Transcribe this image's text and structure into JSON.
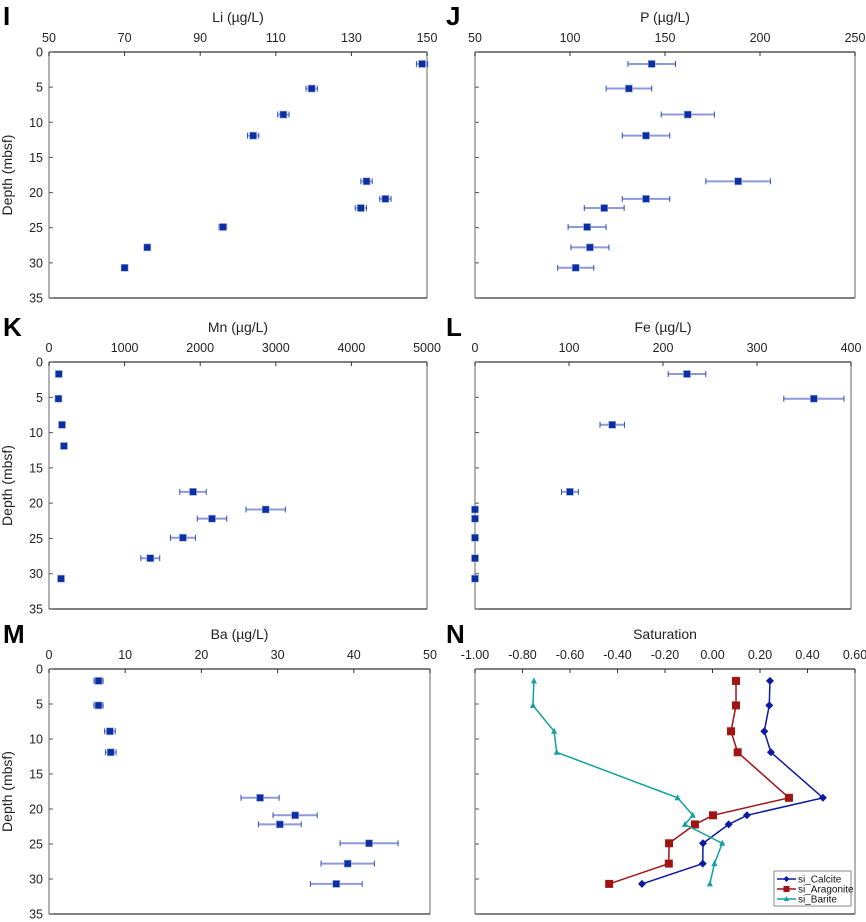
{
  "chart_data": [
    {
      "panel": "I",
      "type": "scatter",
      "title": "Li (µg/L)",
      "xlabel": "Li (µg/L)",
      "ylabel": "Depth (mbsf)",
      "xlim": [
        50,
        150
      ],
      "ylim": [
        0,
        35
      ],
      "y_inverted": true,
      "xticks": [
        50,
        70,
        90,
        110,
        130,
        150
      ],
      "yticks": [
        0,
        5,
        10,
        15,
        20,
        25,
        30,
        35
      ],
      "show_ytick_labels": true,
      "points": [
        {
          "depth": 1.7,
          "value": 148.7,
          "err": 1.5
        },
        {
          "depth": 5.2,
          "value": 119.5,
          "err": 1.5
        },
        {
          "depth": 8.9,
          "value": 112.0,
          "err": 1.5
        },
        {
          "depth": 11.9,
          "value": 104.0,
          "err": 1.5
        },
        {
          "depth": 18.4,
          "value": 134.0,
          "err": 1.5
        },
        {
          "depth": 20.9,
          "value": 139.0,
          "err": 1.5
        },
        {
          "depth": 22.2,
          "value": 132.5,
          "err": 1.5
        },
        {
          "depth": 24.9,
          "value": 96.0,
          "err": 1.0
        },
        {
          "depth": 27.8,
          "value": 76.0,
          "err": 0.7
        },
        {
          "depth": 30.7,
          "value": 70.0,
          "err": 0.6
        }
      ]
    },
    {
      "panel": "J",
      "type": "scatter",
      "title": "P (µg/L)",
      "xlabel": "P (µg/L)",
      "ylabel": "",
      "xlim": [
        50,
        250
      ],
      "ylim": [
        0,
        35
      ],
      "y_inverted": true,
      "xticks": [
        50,
        100,
        150,
        200,
        250
      ],
      "yticks": [
        0,
        5,
        10,
        15,
        20,
        25,
        30,
        35
      ],
      "show_ytick_labels": false,
      "points": [
        {
          "depth": 1.7,
          "value": 143,
          "err": 12.5
        },
        {
          "depth": 5.2,
          "value": 131,
          "err": 12
        },
        {
          "depth": 8.9,
          "value": 162,
          "err": 14
        },
        {
          "depth": 11.9,
          "value": 140,
          "err": 12.5
        },
        {
          "depth": 18.4,
          "value": 188.5,
          "err": 17
        },
        {
          "depth": 20.9,
          "value": 140,
          "err": 12.5
        },
        {
          "depth": 22.2,
          "value": 118,
          "err": 10.5
        },
        {
          "depth": 24.9,
          "value": 109,
          "err": 10
        },
        {
          "depth": 27.8,
          "value": 110.5,
          "err": 10
        },
        {
          "depth": 30.7,
          "value": 103,
          "err": 9.5
        }
      ]
    },
    {
      "panel": "K",
      "type": "scatter",
      "title": "Mn (µg/L)",
      "xlabel": "Mn (µg/L)",
      "ylabel": "Depth (mbsf)",
      "xlim": [
        0,
        5000
      ],
      "ylim": [
        0,
        35
      ],
      "y_inverted": true,
      "xticks": [
        0,
        1000,
        2000,
        3000,
        4000,
        5000
      ],
      "yticks": [
        0,
        5,
        10,
        15,
        20,
        25,
        30,
        35
      ],
      "show_ytick_labels": true,
      "points": [
        {
          "depth": 1.7,
          "value": 130,
          "err": 0
        },
        {
          "depth": 5.2,
          "value": 125,
          "err": 0
        },
        {
          "depth": 8.9,
          "value": 172,
          "err": 0
        },
        {
          "depth": 11.9,
          "value": 198,
          "err": 0
        },
        {
          "depth": 18.4,
          "value": 1905,
          "err": 175
        },
        {
          "depth": 20.9,
          "value": 2866,
          "err": 260
        },
        {
          "depth": 22.2,
          "value": 2156,
          "err": 195
        },
        {
          "depth": 24.9,
          "value": 1772,
          "err": 165
        },
        {
          "depth": 27.8,
          "value": 1340,
          "err": 125
        },
        {
          "depth": 30.7,
          "value": 159,
          "err": 0
        }
      ]
    },
    {
      "panel": "L",
      "type": "scatter",
      "title": "Fe (µg/L)",
      "xlabel": "Fe (µg/L)",
      "ylabel": "",
      "xlim": [
        0,
        400
      ],
      "ylim": [
        0,
        35
      ],
      "y_inverted": true,
      "xticks": [
        0,
        100,
        200,
        300,
        400
      ],
      "yticks": [
        0,
        5,
        10,
        15,
        20,
        25,
        30,
        35
      ],
      "show_ytick_labels": false,
      "points": [
        {
          "depth": 1.7,
          "value": 225.5,
          "err": 20
        },
        {
          "depth": 5.2,
          "value": 360.5,
          "err": 32
        },
        {
          "depth": 8.9,
          "value": 146,
          "err": 13
        },
        {
          "depth": 18.4,
          "value": 101,
          "err": 9
        },
        {
          "depth": 20.9,
          "value": 0,
          "err": 0
        },
        {
          "depth": 22.2,
          "value": 0,
          "err": 0
        },
        {
          "depth": 24.9,
          "value": 0,
          "err": 0
        },
        {
          "depth": 27.8,
          "value": 0,
          "err": 0
        },
        {
          "depth": 30.7,
          "value": 0,
          "err": 0
        }
      ]
    },
    {
      "panel": "M",
      "type": "scatter",
      "title": "Ba (µg/L)",
      "xlabel": "Ba (µg/L)",
      "ylabel": "Depth (mbsf)",
      "xlim": [
        0,
        50
      ],
      "ylim": [
        0,
        35
      ],
      "y_inverted": true,
      "xticks": [
        0,
        10,
        20,
        30,
        40,
        50
      ],
      "yticks": [
        0,
        5,
        10,
        15,
        20,
        25,
        30,
        35
      ],
      "show_ytick_labels": true,
      "points": [
        {
          "depth": 1.7,
          "value": 6.5,
          "err": 0.6
        },
        {
          "depth": 5.2,
          "value": 6.5,
          "err": 0.6
        },
        {
          "depth": 8.9,
          "value": 8.0,
          "err": 0.7
        },
        {
          "depth": 11.9,
          "value": 8.1,
          "err": 0.7
        },
        {
          "depth": 18.4,
          "value": 27.7,
          "err": 2.5
        },
        {
          "depth": 20.9,
          "value": 32.3,
          "err": 2.9
        },
        {
          "depth": 22.2,
          "value": 30.3,
          "err": 2.8
        },
        {
          "depth": 24.9,
          "value": 42.0,
          "err": 3.8
        },
        {
          "depth": 27.8,
          "value": 39.2,
          "err": 3.5
        },
        {
          "depth": 30.7,
          "value": 37.7,
          "err": 3.4
        }
      ]
    },
    {
      "panel": "N",
      "type": "line",
      "title": "Saturation",
      "xlabel": "Saturation",
      "ylabel": "",
      "xlim": [
        -1.0,
        0.6
      ],
      "ylim": [
        0,
        35
      ],
      "y_inverted": true,
      "xticks": [
        -1.0,
        -0.8,
        -0.6,
        -0.4,
        -0.2,
        0.0,
        0.2,
        0.4,
        0.6
      ],
      "xtick_labels": [
        "-1.00",
        "-0.80",
        "-0.60",
        "-0.40",
        "-0.20",
        "0.00",
        "0.20",
        "0.40",
        "0.60"
      ],
      "yticks": [
        0,
        5,
        10,
        15,
        20,
        25,
        30,
        35
      ],
      "show_ytick_labels": false,
      "legend": "bottom-right",
      "depths": [
        1.7,
        5.2,
        8.9,
        11.9,
        18.4,
        20.9,
        22.2,
        24.9,
        27.8,
        30.7
      ],
      "series": [
        {
          "name": "si_Calcite",
          "color": "#0b1aa0",
          "marker": "diamond",
          "values": [
            0.242,
            0.239,
            0.218,
            0.246,
            0.465,
            0.145,
            0.068,
            -0.04,
            -0.041,
            -0.297
          ]
        },
        {
          "name": "si_Aragonite",
          "color": "#a01414",
          "marker": "square",
          "values": [
            0.099,
            0.099,
            0.078,
            0.106,
            0.322,
            0.002,
            -0.074,
            -0.183,
            -0.184,
            -0.435
          ]
        },
        {
          "name": "si_Barite",
          "color": "#12a0a0",
          "marker": "triangle",
          "values": [
            -0.752,
            -0.756,
            -0.667,
            -0.656,
            -0.147,
            -0.083,
            -0.116,
            0.041,
            0.008,
            -0.011
          ]
        }
      ]
    }
  ],
  "colors": {
    "marker": "#0a2f9e",
    "error_bar": "#8e98db",
    "error_cap": "#2f4fb8",
    "axis_dark": "#333333",
    "axis_light": "#9a9a9a"
  }
}
